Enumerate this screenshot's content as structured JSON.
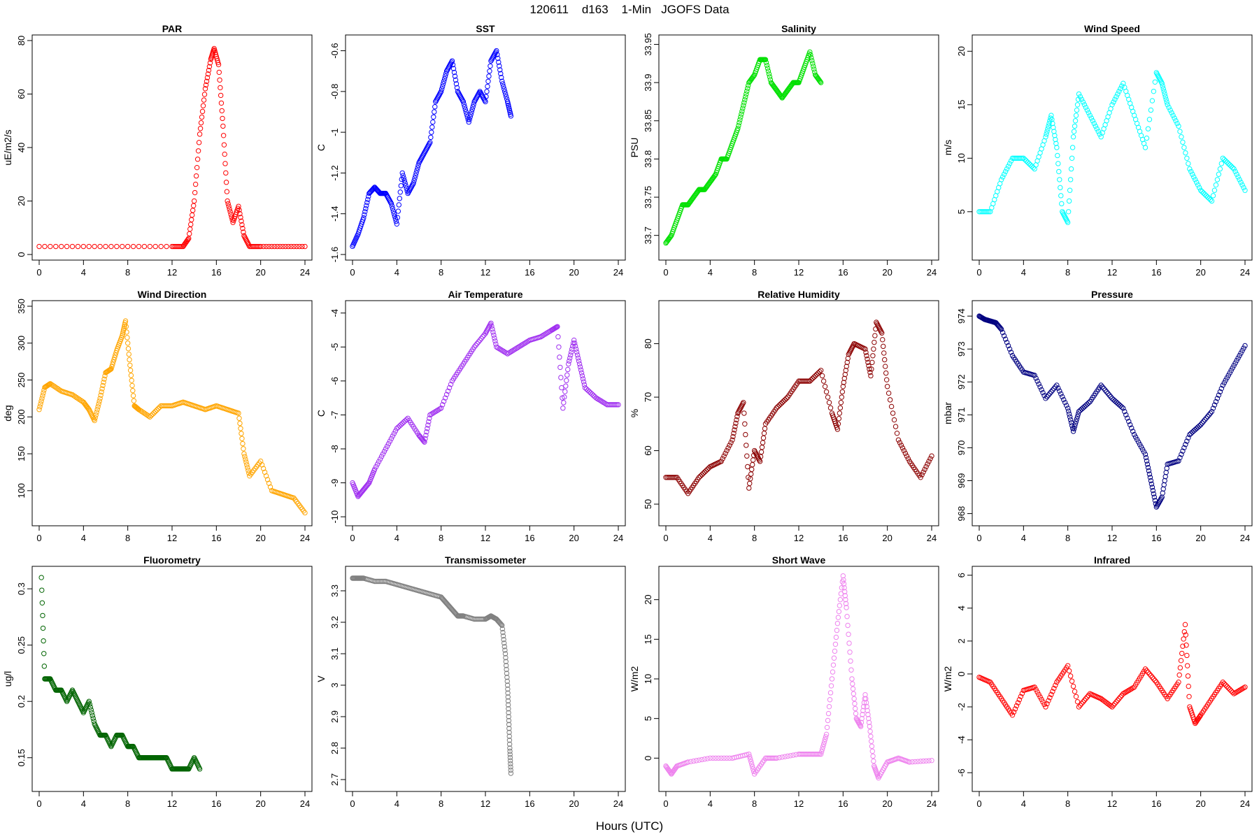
{
  "figure": {
    "title": "120611    d163    1-Min   JGOFS Data",
    "xlabel": "Hours (UTC)"
  },
  "chart_data": [
    {
      "type": "scatter",
      "title": "PAR",
      "ylabel": "uE/m2/s",
      "color": "#ff0000",
      "xlim": [
        0,
        24
      ],
      "ylim": [
        0,
        80
      ],
      "xticks": [
        0,
        4,
        8,
        12,
        16,
        20,
        24
      ],
      "yticks": [
        0,
        20,
        40,
        60,
        80
      ],
      "x": [
        0,
        4,
        8,
        12,
        13,
        13.5,
        14,
        14.5,
        15,
        15.5,
        15.8,
        16.2,
        16.6,
        17,
        17.5,
        18,
        18.5,
        19,
        20,
        22,
        24
      ],
      "y": [
        3,
        3,
        3,
        3,
        3,
        6,
        20,
        45,
        62,
        73,
        77,
        71,
        48,
        20,
        12,
        18,
        7,
        3,
        3,
        3,
        3
      ]
    },
    {
      "type": "scatter",
      "title": "SST",
      "ylabel": "C",
      "color": "#0000ff",
      "xlim": [
        0,
        24
      ],
      "ylim": [
        -1.6,
        -0.55
      ],
      "xticks": [
        0,
        4,
        8,
        12,
        16,
        20,
        24
      ],
      "yticks": [
        -1.6,
        -1.4,
        -1.2,
        -1.0,
        -0.8,
        -0.6
      ],
      "x": [
        0,
        0.5,
        1,
        1.5,
        2,
        2.5,
        3,
        3.5,
        4,
        4.5,
        5,
        5.5,
        6,
        6.5,
        7,
        7.5,
        8,
        8.5,
        9,
        9.5,
        10,
        10.5,
        11,
        11.5,
        12,
        12.5,
        13,
        13.5,
        14,
        14.3
      ],
      "y": [
        -1.56,
        -1.5,
        -1.42,
        -1.3,
        -1.27,
        -1.3,
        -1.3,
        -1.35,
        -1.45,
        -1.2,
        -1.3,
        -1.25,
        -1.15,
        -1.1,
        -1.05,
        -0.85,
        -0.8,
        -0.7,
        -0.65,
        -0.8,
        -0.85,
        -0.95,
        -0.85,
        -0.8,
        -0.85,
        -0.65,
        -0.6,
        -0.75,
        -0.85,
        -0.92
      ]
    },
    {
      "type": "scatter",
      "title": "Salinity",
      "ylabel": "PSU",
      "color": "#00e000",
      "xlim": [
        0,
        24
      ],
      "ylim": [
        33.675,
        33.955
      ],
      "xticks": [
        0,
        4,
        8,
        12,
        16,
        20,
        24
      ],
      "yticks": [
        33.7,
        33.75,
        33.8,
        33.85,
        33.9,
        33.95
      ],
      "x": [
        0,
        0.5,
        1,
        1.5,
        2,
        2.5,
        3,
        3.5,
        4,
        4.5,
        5,
        5.5,
        6,
        6.5,
        7,
        7.5,
        8,
        8.5,
        9,
        9.5,
        10,
        10.5,
        11,
        11.5,
        12,
        12.5,
        13,
        13.5,
        14
      ],
      "y": [
        33.69,
        33.7,
        33.72,
        33.74,
        33.74,
        33.75,
        33.76,
        33.76,
        33.77,
        33.78,
        33.8,
        33.8,
        33.82,
        33.84,
        33.87,
        33.9,
        33.91,
        33.93,
        33.93,
        33.9,
        33.89,
        33.88,
        33.89,
        33.9,
        33.9,
        33.92,
        33.94,
        33.91,
        33.9
      ]
    },
    {
      "type": "scatter",
      "title": "Wind Speed",
      "ylabel": "m/s",
      "color": "#00ffff",
      "xlim": [
        0,
        24
      ],
      "ylim": [
        1,
        21
      ],
      "xticks": [
        0,
        4,
        8,
        12,
        16,
        20,
        24
      ],
      "yticks": [
        5,
        10,
        15,
        20
      ],
      "x": [
        0,
        1,
        2,
        3,
        4,
        5,
        6,
        6.5,
        7,
        7.5,
        8,
        8.5,
        9,
        10,
        11,
        12,
        13,
        14,
        15,
        16,
        16.5,
        17,
        18,
        19,
        20,
        21,
        22,
        23,
        24
      ],
      "y": [
        5,
        5,
        8,
        10,
        10,
        9,
        12,
        14,
        11,
        5,
        4,
        12,
        16,
        14,
        12,
        15,
        17,
        14,
        11,
        18,
        17,
        15,
        13,
        9,
        7,
        6,
        10,
        9,
        7
      ]
    },
    {
      "type": "scatter",
      "title": "Wind Direction",
      "ylabel": "deg",
      "color": "#ffa500",
      "xlim": [
        0,
        24
      ],
      "ylim": [
        60,
        350
      ],
      "xticks": [
        0,
        4,
        8,
        12,
        16,
        20,
        24
      ],
      "yticks": [
        100,
        150,
        200,
        250,
        300,
        350
      ],
      "x": [
        0,
        0.5,
        1,
        2,
        3,
        4,
        4.5,
        5,
        5.5,
        6,
        6.5,
        7,
        7.5,
        7.8,
        8.2,
        8.6,
        9,
        10,
        11,
        12,
        13,
        14,
        15,
        16,
        17,
        18,
        18.5,
        19,
        20,
        21,
        22,
        23,
        24
      ],
      "y": [
        210,
        240,
        245,
        235,
        230,
        220,
        210,
        195,
        225,
        260,
        265,
        290,
        310,
        330,
        270,
        215,
        210,
        200,
        215,
        215,
        220,
        215,
        210,
        215,
        210,
        205,
        150,
        120,
        140,
        100,
        95,
        90,
        70
      ]
    },
    {
      "type": "scatter",
      "title": "Air Temperature",
      "ylabel": "C",
      "color": "#a030f0",
      "xlim": [
        0,
        24
      ],
      "ylim": [
        -10.1,
        -3.8
      ],
      "xticks": [
        0,
        4,
        8,
        12,
        16,
        20,
        24
      ],
      "yticks": [
        -10,
        -9,
        -8,
        -7,
        -6,
        -5,
        -4
      ],
      "x": [
        0,
        0.5,
        1,
        1.5,
        2,
        3,
        4,
        5,
        6,
        6.5,
        7,
        8,
        9,
        10,
        11,
        12,
        12.5,
        13,
        14,
        15,
        16,
        17,
        18,
        18.5,
        19,
        19.5,
        20,
        20.5,
        21,
        22,
        23,
        24
      ],
      "y": [
        -9,
        -9.4,
        -9.2,
        -9.0,
        -8.6,
        -8.0,
        -7.4,
        -7.1,
        -7.6,
        -7.8,
        -7.0,
        -6.8,
        -6.0,
        -5.5,
        -5.0,
        -4.6,
        -4.3,
        -5.0,
        -5.2,
        -5.0,
        -4.8,
        -4.7,
        -4.5,
        -4.4,
        -6.8,
        -5.5,
        -4.8,
        -5.5,
        -6.2,
        -6.5,
        -6.7,
        -6.7
      ]
    },
    {
      "type": "scatter",
      "title": "Relative Humidity",
      "ylabel": "%",
      "color": "#8b0000",
      "xlim": [
        0,
        24
      ],
      "ylim": [
        47,
        87
      ],
      "xticks": [
        0,
        4,
        8,
        12,
        16,
        20,
        24
      ],
      "yticks": [
        50,
        60,
        70,
        80
      ],
      "x": [
        0,
        1,
        2,
        3,
        4,
        5,
        6,
        6.5,
        7,
        7.5,
        8,
        8.5,
        9,
        10,
        11,
        12,
        13,
        14,
        15,
        15.5,
        16,
        16.5,
        17,
        18,
        18.5,
        19,
        19.5,
        20,
        21,
        22,
        23,
        24
      ],
      "y": [
        55,
        55,
        52,
        55,
        57,
        58,
        62,
        67,
        69,
        53,
        60,
        58,
        65,
        68,
        70,
        73,
        73,
        75,
        67,
        64,
        72,
        78,
        80,
        79,
        74,
        84,
        82,
        72,
        62,
        58,
        55,
        59
      ]
    },
    {
      "type": "scatter",
      "title": "Pressure",
      "ylabel": "mbar",
      "color": "#000080",
      "xlim": [
        0,
        24
      ],
      "ylim": [
        967.8,
        974.3
      ],
      "xticks": [
        0,
        4,
        8,
        12,
        16,
        20,
        24
      ],
      "yticks": [
        968,
        969,
        970,
        971,
        972,
        973,
        974
      ],
      "x": [
        0,
        0.5,
        1,
        1.5,
        2,
        3,
        4,
        5,
        6,
        7,
        8,
        8.5,
        9,
        10,
        11,
        12,
        13,
        14,
        15,
        15.5,
        16,
        16.5,
        17,
        18,
        19,
        20,
        21,
        22,
        23,
        24
      ],
      "y": [
        974,
        973.9,
        973.85,
        973.8,
        973.6,
        972.8,
        972.3,
        972.2,
        971.5,
        971.9,
        971.2,
        970.5,
        971.1,
        971.4,
        971.9,
        971.5,
        971.2,
        970.4,
        969.8,
        969.0,
        968.2,
        968.5,
        969.5,
        969.6,
        970.4,
        970.7,
        971.1,
        971.9,
        972.5,
        973.1
      ]
    },
    {
      "type": "scatter",
      "title": "Fluorometry",
      "ylabel": "ug/l",
      "color": "#006400",
      "xlim": [
        0,
        24
      ],
      "ylim": [
        0.125,
        0.315
      ],
      "xticks": [
        0,
        4,
        8,
        12,
        16,
        20,
        24
      ],
      "yticks": [
        0.15,
        0.2,
        0.25,
        0.3
      ],
      "x": [
        0.2,
        0.5,
        1,
        1.5,
        2,
        2.5,
        3,
        3.5,
        4,
        4.5,
        5,
        5.5,
        6,
        6.5,
        7,
        7.5,
        8,
        8.5,
        9,
        9.5,
        10,
        10.5,
        11,
        11.5,
        12,
        12.5,
        13,
        13.5,
        14,
        14.5
      ],
      "y": [
        0.31,
        0.22,
        0.22,
        0.21,
        0.21,
        0.2,
        0.21,
        0.2,
        0.19,
        0.2,
        0.18,
        0.17,
        0.17,
        0.16,
        0.17,
        0.17,
        0.16,
        0.16,
        0.15,
        0.15,
        0.15,
        0.15,
        0.15,
        0.15,
        0.14,
        0.14,
        0.14,
        0.14,
        0.15,
        0.14
      ]
    },
    {
      "type": "scatter",
      "title": "Transmissometer",
      "ylabel": "V",
      "color": "#808080",
      "xlim": [
        0,
        24
      ],
      "ylim": [
        2.68,
        3.36
      ],
      "xticks": [
        0,
        4,
        8,
        12,
        16,
        20,
        24
      ],
      "yticks": [
        2.7,
        2.8,
        2.9,
        3.0,
        3.1,
        3.2,
        3.3
      ],
      "x": [
        0,
        0.5,
        1,
        2,
        3,
        4,
        5,
        6,
        7,
        8,
        8.5,
        9,
        9.5,
        10,
        11,
        12,
        12.5,
        13,
        13.5,
        13.8,
        14,
        14.1,
        14.2,
        14.3
      ],
      "y": [
        3.34,
        3.34,
        3.34,
        3.33,
        3.33,
        3.32,
        3.31,
        3.3,
        3.29,
        3.28,
        3.26,
        3.24,
        3.22,
        3.22,
        3.21,
        3.21,
        3.22,
        3.21,
        3.19,
        3.1,
        3.0,
        2.9,
        2.8,
        2.72
      ]
    },
    {
      "type": "scatter",
      "title": "Short Wave",
      "ylabel": "W/m2",
      "color": "#ee82ee",
      "xlim": [
        0,
        24
      ],
      "ylim": [
        -3.5,
        23.5
      ],
      "xticks": [
        0,
        4,
        8,
        12,
        16,
        20,
        24
      ],
      "yticks": [
        0,
        5,
        10,
        15,
        20
      ],
      "x": [
        0,
        0.5,
        1,
        2,
        4,
        6,
        7.5,
        8,
        9,
        10,
        12,
        13,
        14,
        14.5,
        15,
        15.5,
        16,
        16.3,
        16.8,
        17.2,
        17.6,
        18,
        18.4,
        18.8,
        19.2,
        20,
        21,
        22,
        24
      ],
      "y": [
        -1,
        -2,
        -1,
        -0.5,
        0,
        0,
        0.5,
        -2,
        0,
        0,
        0.5,
        0.5,
        0.5,
        3,
        10,
        17,
        23,
        19,
        10,
        5,
        4,
        8,
        4,
        -1,
        -2.5,
        -0.5,
        0,
        -0.5,
        -0.3
      ]
    },
    {
      "type": "scatter",
      "title": "Infrared",
      "ylabel": "W/m2",
      "color": "#ff0000",
      "xlim": [
        0,
        24
      ],
      "ylim": [
        -6.8,
        6.2
      ],
      "xticks": [
        0,
        4,
        8,
        12,
        16,
        20,
        24
      ],
      "yticks": [
        -6,
        -4,
        -2,
        0,
        2,
        4,
        6
      ],
      "x": [
        0,
        1,
        2,
        3,
        4,
        5,
        6,
        7,
        8,
        9,
        10,
        11,
        12,
        13,
        14,
        15,
        16,
        17,
        18,
        18.6,
        19,
        19.5,
        20,
        21,
        22,
        23,
        24
      ],
      "y": [
        -0.2,
        -0.5,
        -1.5,
        -2.5,
        -1,
        -0.8,
        -2,
        -0.5,
        0.5,
        -2,
        -1.2,
        -1.5,
        -2,
        -1.2,
        -0.8,
        0.3,
        -0.5,
        -1.5,
        -0.5,
        3,
        -2,
        -3,
        -2.5,
        -1.5,
        -0.5,
        -1.2,
        -0.8
      ]
    }
  ]
}
